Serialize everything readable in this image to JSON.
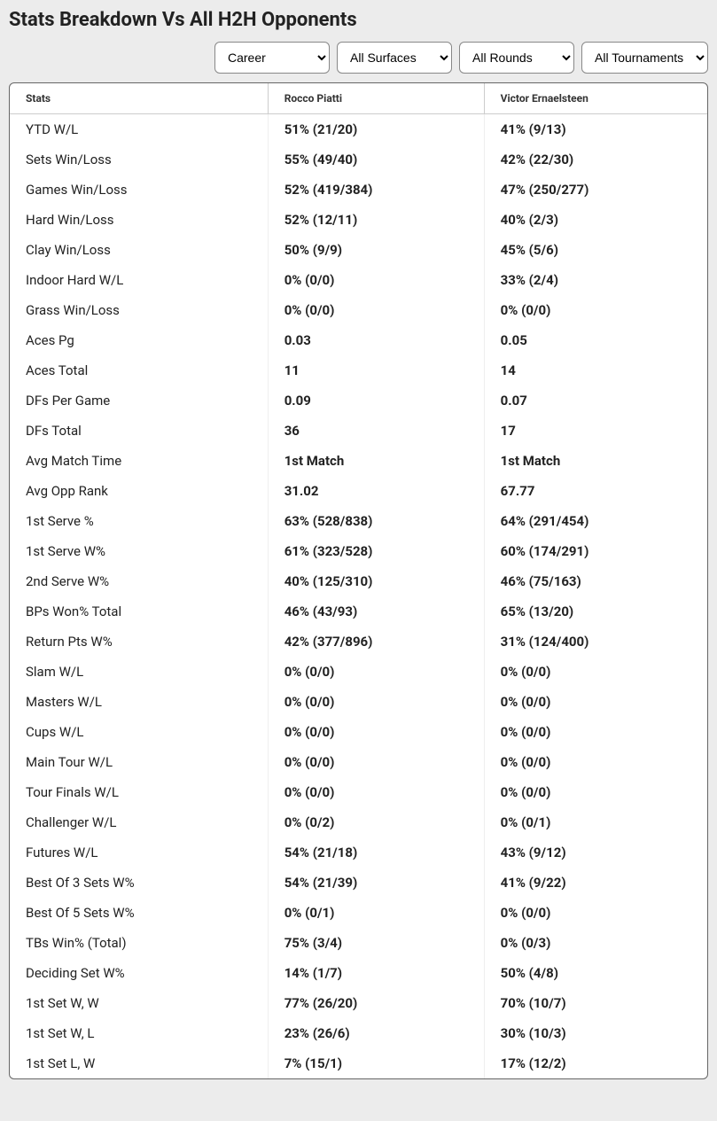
{
  "title": "Stats Breakdown Vs All H2H Opponents",
  "filters": {
    "period": {
      "selected": "Career"
    },
    "surface": {
      "selected": "All Surfaces"
    },
    "round": {
      "selected": "All Rounds"
    },
    "tournament": {
      "selected": "All Tournaments"
    }
  },
  "columns": {
    "stats": "Stats",
    "p1": "Rocco Piatti",
    "p2": "Victor Ernaelsteen"
  },
  "rows": [
    {
      "label": "YTD W/L",
      "p1": "51% (21/20)",
      "p2": "41% (9/13)"
    },
    {
      "label": "Sets Win/Loss",
      "p1": "55% (49/40)",
      "p2": "42% (22/30)"
    },
    {
      "label": "Games Win/Loss",
      "p1": "52% (419/384)",
      "p2": "47% (250/277)"
    },
    {
      "label": "Hard Win/Loss",
      "p1": "52% (12/11)",
      "p2": "40% (2/3)"
    },
    {
      "label": "Clay Win/Loss",
      "p1": "50% (9/9)",
      "p2": "45% (5/6)"
    },
    {
      "label": "Indoor Hard W/L",
      "p1": "0% (0/0)",
      "p2": "33% (2/4)"
    },
    {
      "label": "Grass Win/Loss",
      "p1": "0% (0/0)",
      "p2": "0% (0/0)"
    },
    {
      "label": "Aces Pg",
      "p1": "0.03",
      "p2": "0.05"
    },
    {
      "label": "Aces Total",
      "p1": "11",
      "p2": "14"
    },
    {
      "label": "DFs Per Game",
      "p1": "0.09",
      "p2": "0.07"
    },
    {
      "label": "DFs Total",
      "p1": "36",
      "p2": "17"
    },
    {
      "label": "Avg Match Time",
      "p1": "1st Match",
      "p2": "1st Match"
    },
    {
      "label": "Avg Opp Rank",
      "p1": "31.02",
      "p2": "67.77"
    },
    {
      "label": "1st Serve %",
      "p1": "63% (528/838)",
      "p2": "64% (291/454)"
    },
    {
      "label": "1st Serve W%",
      "p1": "61% (323/528)",
      "p2": "60% (174/291)"
    },
    {
      "label": "2nd Serve W%",
      "p1": "40% (125/310)",
      "p2": "46% (75/163)"
    },
    {
      "label": "BPs Won% Total",
      "p1": "46% (43/93)",
      "p2": "65% (13/20)"
    },
    {
      "label": "Return Pts W%",
      "p1": "42% (377/896)",
      "p2": "31% (124/400)"
    },
    {
      "label": "Slam W/L",
      "p1": "0% (0/0)",
      "p2": "0% (0/0)"
    },
    {
      "label": "Masters W/L",
      "p1": "0% (0/0)",
      "p2": "0% (0/0)"
    },
    {
      "label": "Cups W/L",
      "p1": "0% (0/0)",
      "p2": "0% (0/0)"
    },
    {
      "label": "Main Tour W/L",
      "p1": "0% (0/0)",
      "p2": "0% (0/0)"
    },
    {
      "label": "Tour Finals W/L",
      "p1": "0% (0/0)",
      "p2": "0% (0/0)"
    },
    {
      "label": "Challenger W/L",
      "p1": "0% (0/2)",
      "p2": "0% (0/1)"
    },
    {
      "label": "Futures W/L",
      "p1": "54% (21/18)",
      "p2": "43% (9/12)"
    },
    {
      "label": "Best Of 3 Sets W%",
      "p1": "54% (21/39)",
      "p2": "41% (9/22)"
    },
    {
      "label": "Best Of 5 Sets W%",
      "p1": "0% (0/1)",
      "p2": "0% (0/0)"
    },
    {
      "label": "TBs Win% (Total)",
      "p1": "75% (3/4)",
      "p2": "0% (0/3)"
    },
    {
      "label": "Deciding Set W%",
      "p1": "14% (1/7)",
      "p2": "50% (4/8)"
    },
    {
      "label": "1st Set W, W",
      "p1": "77% (26/20)",
      "p2": "70% (10/7)"
    },
    {
      "label": "1st Set W, L",
      "p1": "23% (26/6)",
      "p2": "30% (10/3)"
    },
    {
      "label": "1st Set L, W",
      "p1": "7% (15/1)",
      "p2": "17% (12/2)"
    }
  ]
}
